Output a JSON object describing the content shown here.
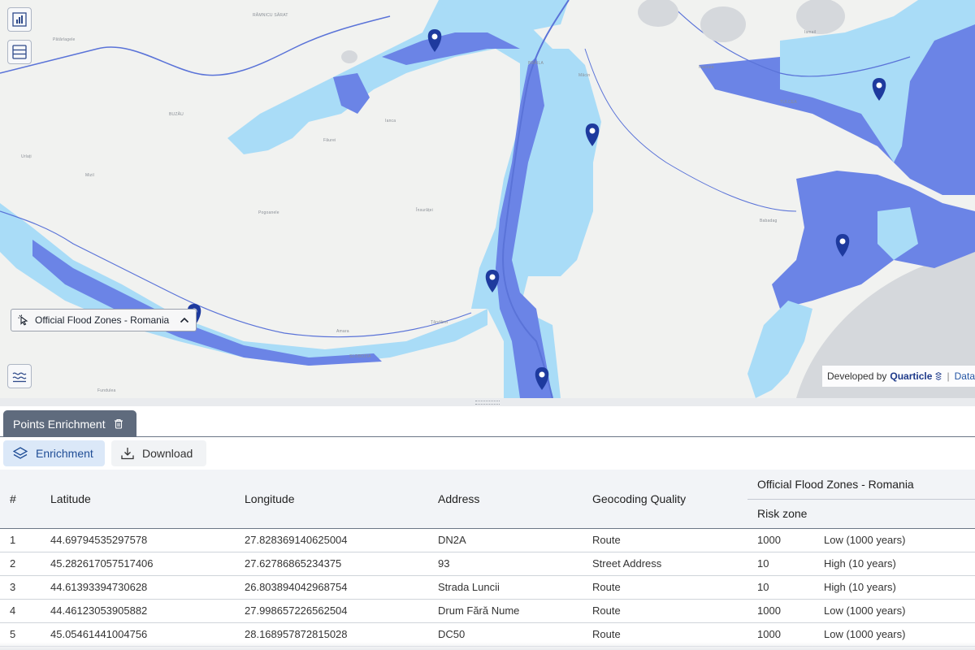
{
  "map": {
    "place_labels": [
      {
        "id": "ramnicu-sarat",
        "text": "RÂMNICU SĂRAT"
      },
      {
        "id": "braila",
        "text": "BRĂILA"
      },
      {
        "id": "buzau",
        "text": "BUZĂU"
      },
      {
        "id": "tulcea",
        "text": "TULCEA"
      },
      {
        "id": "babadag",
        "text": "Babadag"
      },
      {
        "id": "ianca",
        "text": "Ianca"
      },
      {
        "id": "faurei",
        "text": "Făurei"
      },
      {
        "id": "insuratei",
        "text": "Însurăței"
      },
      {
        "id": "pogoanele",
        "text": "Pogoanele"
      },
      {
        "id": "urziceni",
        "text": "Urlați"
      },
      {
        "id": "mizil",
        "text": "Mizil"
      },
      {
        "id": "patarlagele",
        "text": "Pătârlagele"
      },
      {
        "id": "tandarei",
        "text": "Țăndărei"
      },
      {
        "id": "amara",
        "text": "Amara"
      },
      {
        "id": "slobozia",
        "text": "SLOBOZIA"
      },
      {
        "id": "fundulea",
        "text": "Fundulea"
      },
      {
        "id": "isaccea",
        "text": "Isaccea"
      },
      {
        "id": "macin",
        "text": "Măcin"
      },
      {
        "id": "ismail",
        "text": "Ismail"
      }
    ],
    "layer_chip": {
      "label": "Official Flood Zones - Romania"
    },
    "attribution": {
      "developed_by": "Developed by",
      "brand": "Quarticle",
      "data_link": "Data"
    },
    "colors": {
      "land": "#f1f2f0",
      "flood_light": "#a9dcf7",
      "flood_dark": "#6b84e6",
      "river": "#5a73d8",
      "sea": "#d5d8dc",
      "marker": "#1e3a9e"
    }
  },
  "tabs": [
    {
      "label": "Points Enrichment",
      "icon": "trash-icon"
    }
  ],
  "toolbar": {
    "enrichment_label": "Enrichment",
    "download_label": "Download"
  },
  "table": {
    "headers": {
      "index": "#",
      "latitude": "Latitude",
      "longitude": "Longitude",
      "address": "Address",
      "geocoding": "Geocoding Quality",
      "group": "Official Flood Zones - Romania",
      "risk_zone": "Risk zone"
    },
    "rows": [
      {
        "n": "1",
        "lat": "44.69794535297578",
        "lon": "27.828369140625004",
        "address": "DN2A",
        "quality": "Route",
        "risk": "1000",
        "risk_label": "Low (1000 years)"
      },
      {
        "n": "2",
        "lat": "45.282617057517406",
        "lon": "27.62786865234375",
        "address": "93",
        "quality": "Street Address",
        "risk": "10",
        "risk_label": "High (10 years)"
      },
      {
        "n": "3",
        "lat": "44.61393394730628",
        "lon": "26.803894042968754",
        "address": "Strada Luncii",
        "quality": "Route",
        "risk": "10",
        "risk_label": "High (10 years)"
      },
      {
        "n": "4",
        "lat": "44.46123053905882",
        "lon": "27.998657226562504",
        "address": "Drum Fără Nume",
        "quality": "Route",
        "risk": "1000",
        "risk_label": "Low (1000 years)"
      },
      {
        "n": "5",
        "lat": "45.05461441004756",
        "lon": "28.168957872815028",
        "address": "DC50",
        "quality": "Route",
        "risk": "1000",
        "risk_label": "Low (1000 years)"
      }
    ]
  }
}
